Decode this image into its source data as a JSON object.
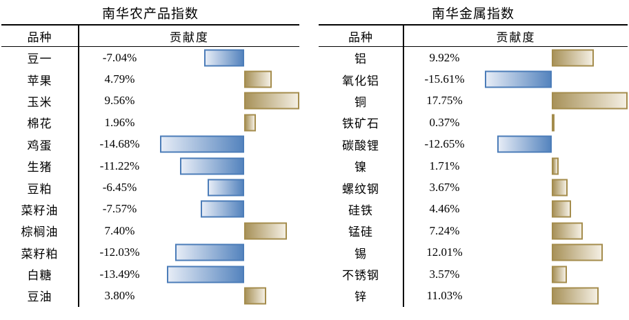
{
  "colors": {
    "negative_bar_border": "#4B7CB8",
    "negative_bar_fill_dark": "#5584BE",
    "negative_bar_fill_light": "#E6ECF6",
    "positive_bar_border": "#A48C4C",
    "positive_bar_fill_dark": "#A8925A",
    "positive_bar_fill_light": "#F4EFE3",
    "line_color": "#000000",
    "text_color": "#000000"
  },
  "chart_data": [
    {
      "type": "bar",
      "orientation": "horizontal",
      "title": "南华农产品指数",
      "columns": [
        "品种",
        "贡献度"
      ],
      "legend": "none",
      "grid": false,
      "axis_note": "zero axis shared per table; negative bars blue extend left, positive bars gold extend right, bar length proportional to |value| over (maxNeg+maxPos)",
      "categories": [
        "豆一",
        "苹果",
        "玉米",
        "棉花",
        "鸡蛋",
        "生猪",
        "豆粕",
        "菜籽油",
        "棕榈油",
        "菜籽粕",
        "白糖",
        "豆油"
      ],
      "values": [
        -7.04,
        4.79,
        9.56,
        1.96,
        -14.68,
        -11.22,
        -6.45,
        -7.57,
        7.4,
        -12.03,
        -13.49,
        3.8
      ],
      "labels": [
        "-7.04%",
        "4.79%",
        "9.56%",
        "1.96%",
        "-14.68%",
        "-11.22%",
        "-6.45%",
        "-7.57%",
        "7.40%",
        "-12.03%",
        "-13.49%",
        "3.80%"
      ]
    },
    {
      "type": "bar",
      "orientation": "horizontal",
      "title": "南华金属指数",
      "columns": [
        "品种",
        "贡献度"
      ],
      "legend": "none",
      "grid": false,
      "axis_note": "zero axis shared per table; negative bars blue extend left, positive bars gold extend right, bar length proportional to |value| over (maxNeg+maxPos)",
      "categories": [
        "铝",
        "氧化铝",
        "铜",
        "铁矿石",
        "碳酸锂",
        "镍",
        "螺纹钢",
        "硅铁",
        "锰硅",
        "锡",
        "不锈钢",
        "锌"
      ],
      "values": [
        9.92,
        -15.61,
        17.75,
        0.37,
        -12.65,
        1.71,
        3.67,
        4.46,
        7.24,
        12.01,
        3.57,
        11.03
      ],
      "labels": [
        "9.92%",
        "-15.61%",
        "17.75%",
        "0.37%",
        "-12.65%",
        "1.71%",
        "3.67%",
        "4.46%",
        "7.24%",
        "12.01%",
        "3.57%",
        "11.03%"
      ]
    }
  ]
}
